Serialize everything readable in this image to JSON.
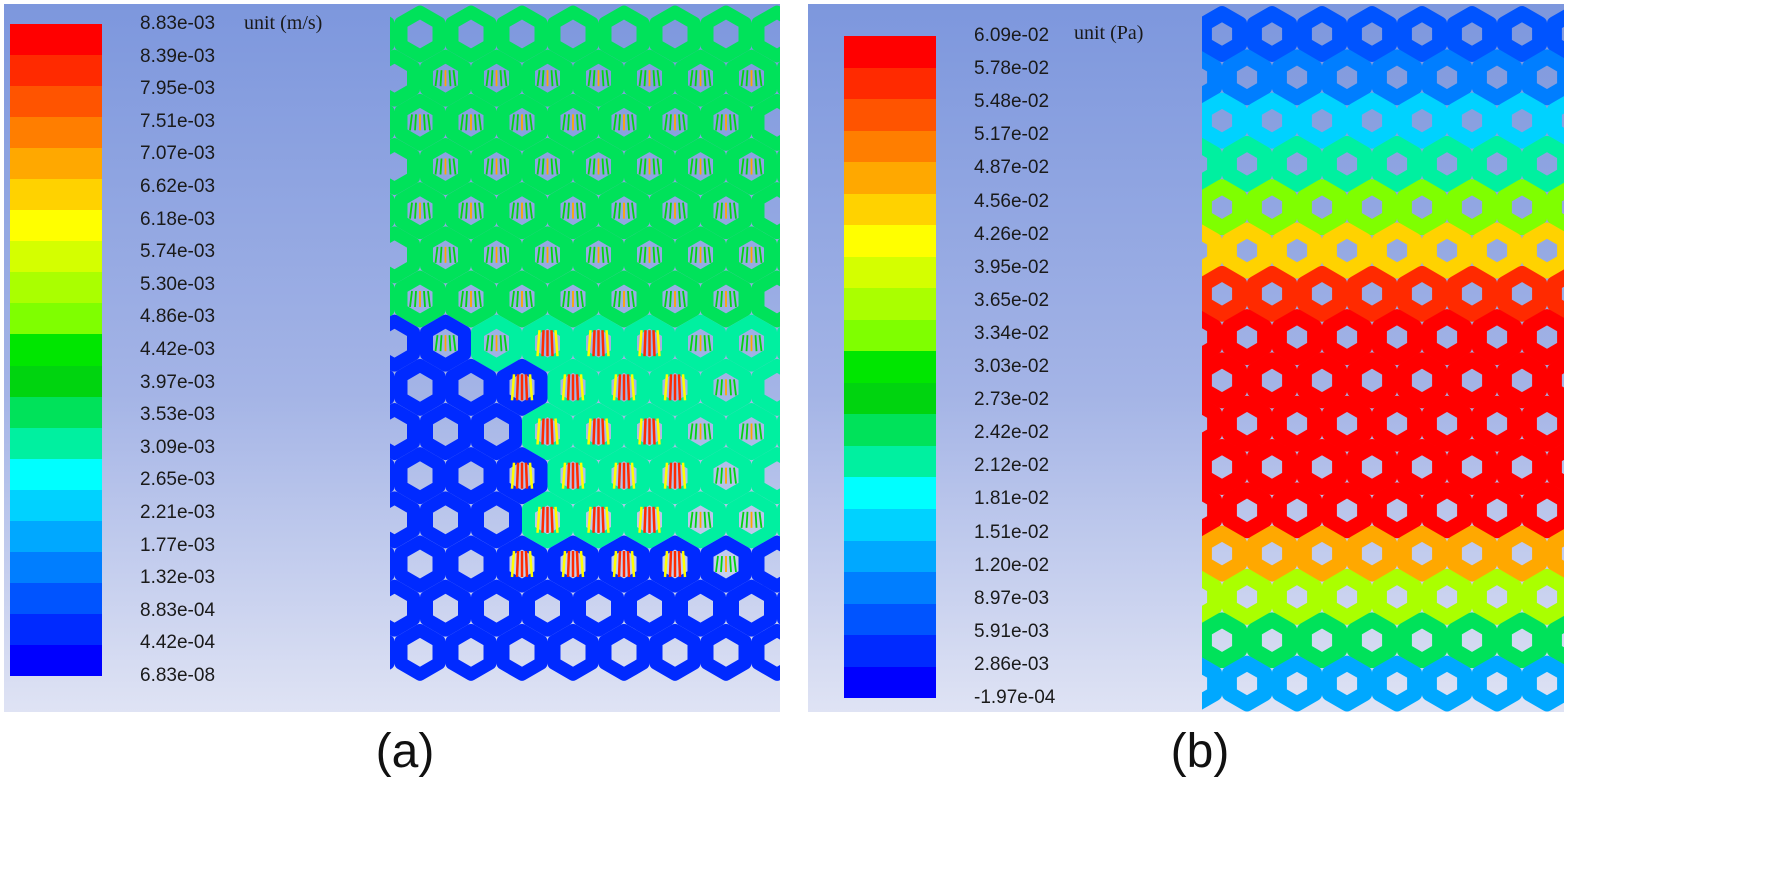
{
  "panel_a": {
    "unit": "unit (m/s)",
    "label": "(a)",
    "colorbar": [
      "8.83e-03",
      "8.39e-03",
      "7.95e-03",
      "7.51e-03",
      "7.07e-03",
      "6.62e-03",
      "6.18e-03",
      "5.74e-03",
      "5.30e-03",
      "4.86e-03",
      "4.42e-03",
      "3.97e-03",
      "3.53e-03",
      "3.09e-03",
      "2.65e-03",
      "2.21e-03",
      "1.77e-03",
      "1.32e-03",
      "8.83e-04",
      "4.42e-04",
      "6.83e-08"
    ]
  },
  "panel_b": {
    "unit": "unit (Pa)",
    "label": "(b)",
    "colorbar": [
      "6.09e-02",
      "5.78e-02",
      "5.48e-02",
      "5.17e-02",
      "4.87e-02",
      "4.56e-02",
      "4.26e-02",
      "3.95e-02",
      "3.65e-02",
      "3.34e-02",
      "3.03e-02",
      "2.73e-02",
      "2.42e-02",
      "2.12e-02",
      "1.81e-02",
      "1.51e-02",
      "1.20e-02",
      "8.97e-03",
      "5.91e-03",
      "2.86e-03",
      "-1.97e-04"
    ]
  },
  "colormap": [
    "#ff0000",
    "#ff2a00",
    "#ff5400",
    "#ff7e00",
    "#ffa800",
    "#ffd200",
    "#ffff00",
    "#d4ff00",
    "#aaff00",
    "#7fff00",
    "#00e600",
    "#00d40f",
    "#00e25a",
    "#00f0a0",
    "#00ffff",
    "#00d2ff",
    "#00a8ff",
    "#007eff",
    "#0054ff",
    "#002aff",
    "#0000ff"
  ]
}
